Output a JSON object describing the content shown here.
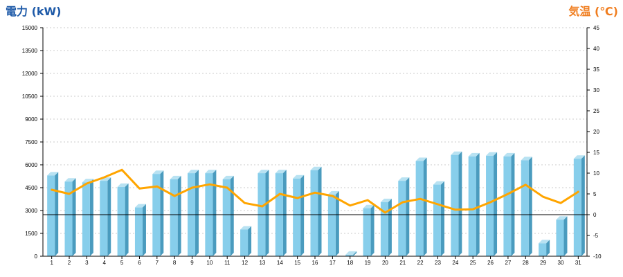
{
  "chart_data": {
    "type": "bar",
    "title_left": "電力 (kW)",
    "title_right": "気温 (℃)",
    "categories": [
      "1",
      "2",
      "3",
      "4",
      "5",
      "6",
      "7",
      "8",
      "9",
      "10",
      "11",
      "12",
      "13",
      "14",
      "15",
      "16",
      "17",
      "18",
      "19",
      "20",
      "21",
      "22",
      "23",
      "24",
      "25",
      "26",
      "27",
      "28",
      "29",
      "30",
      "31"
    ],
    "y_left_ticks": [
      "0",
      "1500",
      "3000",
      "4500",
      "6000",
      "7500",
      "9000",
      "10500",
      "12000",
      "13500",
      "15000"
    ],
    "y_right_ticks": [
      "-10",
      "-5",
      "0",
      "5",
      "10",
      "15",
      "20",
      "25",
      "30",
      "35",
      "40",
      "45"
    ],
    "ylim_left": [
      0,
      15000
    ],
    "ylim_right": [
      -10,
      45
    ],
    "series": [
      {
        "name": "電力",
        "axis": "left",
        "values": [
          5300,
          4900,
          4850,
          4950,
          4550,
          3200,
          5400,
          5050,
          5450,
          5450,
          5050,
          1750,
          5450,
          5450,
          5100,
          5650,
          4050,
          100,
          3150,
          3550,
          4950,
          6250,
          4700,
          6650,
          6550,
          6600,
          6550,
          6300,
          850,
          2400,
          6400
        ]
      },
      {
        "name": "気温",
        "axis": "right",
        "values": [
          6.0,
          5.0,
          7.5,
          9.0,
          10.8,
          6.3,
          6.8,
          4.5,
          6.5,
          7.3,
          6.5,
          2.8,
          2.0,
          5.0,
          4.0,
          5.3,
          4.5,
          2.2,
          3.5,
          0.5,
          3.0,
          3.8,
          2.5,
          1.2,
          1.3,
          3.0,
          5.0,
          7.2,
          4.3,
          2.8,
          5.5
        ]
      }
    ],
    "colors": {
      "bar_front": "#87CEEB",
      "bar_side": "#4A9BBE",
      "bar_top": "#B8E2F2",
      "line": "#FFA500",
      "title_left": "#1E5AA8",
      "title_right": "#F07D1E",
      "grid": "#BBBBBB",
      "axis": "#000000"
    },
    "grid": true
  }
}
